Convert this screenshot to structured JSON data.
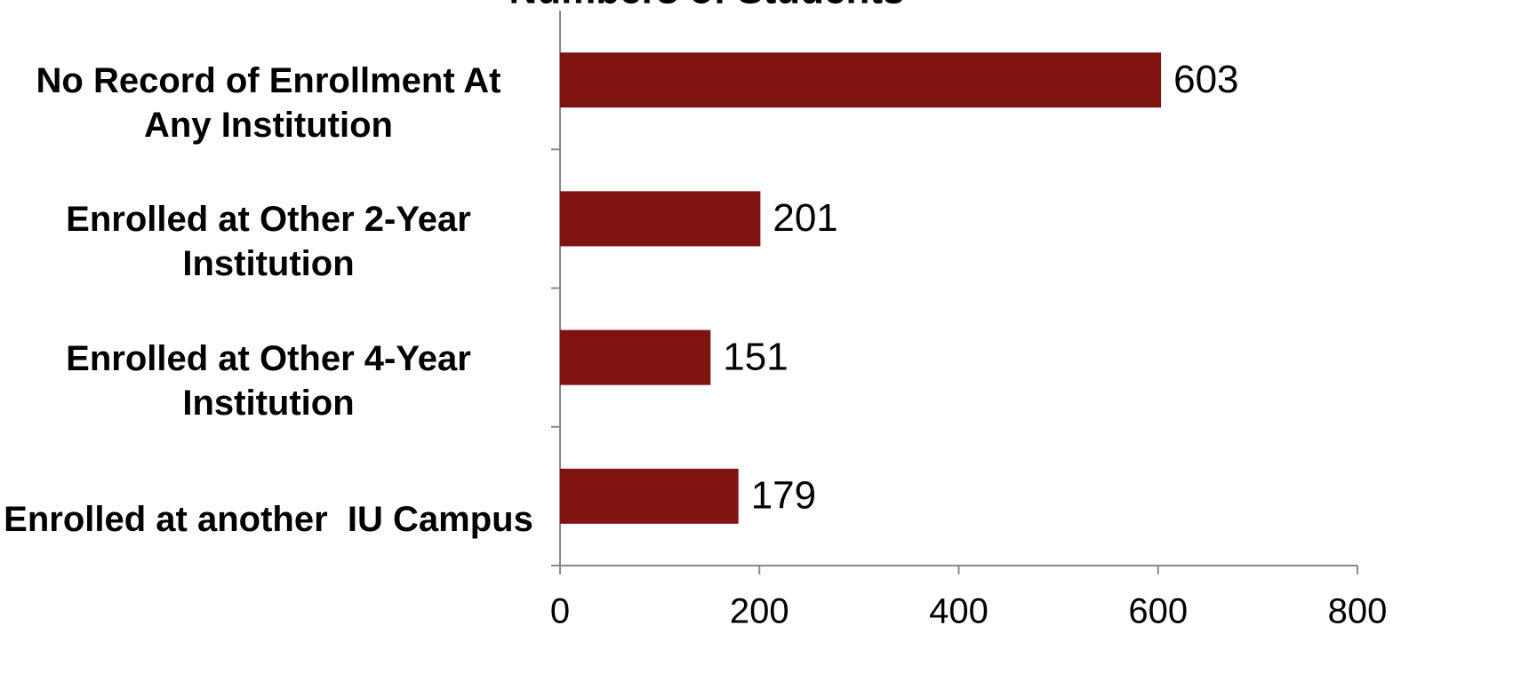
{
  "chart_data": {
    "type": "bar",
    "orientation": "horizontal",
    "title": "Numbers of Students",
    "categories": [
      "No Record of Enrollment At Any Institution",
      "Enrolled at Other 2-Year Institution",
      "Enrolled at Other 4-Year Institution",
      "Enrolled at another  IU Campus"
    ],
    "values": [
      603,
      201,
      151,
      179
    ],
    "color": "#7f1310",
    "xlim": [
      0,
      800
    ],
    "xticks": [
      0,
      200,
      400,
      600,
      800
    ],
    "grid": false
  }
}
